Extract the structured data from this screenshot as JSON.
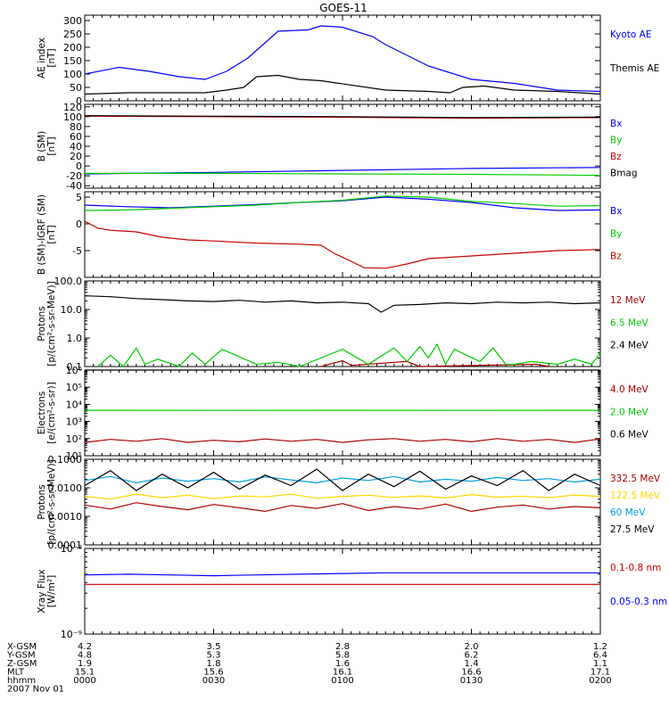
{
  "title": "GOES-11",
  "colors": {
    "black": "#000000",
    "blue": "#0000ff",
    "green": "#00cc00",
    "red": "#cc0000",
    "darkred": "#aa0000",
    "yellow": "#ffd700",
    "cyan": "#00a0e0"
  },
  "x_axis": {
    "rows": [
      {
        "label": "X-GSM",
        "values": [
          "4.2",
          "3.5",
          "2.8",
          "2.0",
          "1.2"
        ]
      },
      {
        "label": "Y-GSM",
        "values": [
          "4.8",
          "5.3",
          "5.8",
          "6.2",
          "6.4"
        ]
      },
      {
        "label": "Z-GSM",
        "values": [
          "1.9",
          "1.8",
          "1.6",
          "1.4",
          "1.1"
        ]
      },
      {
        "label": "MLT",
        "values": [
          "15.1",
          "15.6",
          "16.1",
          "16.6",
          "17.1"
        ]
      },
      {
        "label": "hhmm",
        "values": [
          "0000",
          "0030",
          "0100",
          "0130",
          "0200"
        ]
      }
    ],
    "date": "2007 Nov 01"
  },
  "chart_data": [
    {
      "id": "ae",
      "type": "line",
      "scale": "linear",
      "ylabel": [
        "AE index",
        "[nT]"
      ],
      "ylim": [
        0,
        320
      ],
      "yticks": [
        0,
        50,
        100,
        150,
        200,
        250,
        300
      ],
      "series": [
        {
          "name": "Kyoto AE",
          "color": "#0000ff",
          "x": [
            0,
            8,
            15,
            22,
            28,
            33,
            38,
            45,
            52,
            55,
            60,
            67,
            70,
            75,
            80,
            84,
            90,
            100,
            110,
            120
          ],
          "y": [
            100,
            125,
            110,
            90,
            80,
            110,
            160,
            260,
            265,
            280,
            275,
            240,
            210,
            170,
            130,
            110,
            80,
            65,
            40,
            35
          ]
        },
        {
          "name": "Themis AE",
          "color": "#000000",
          "x": [
            0,
            10,
            20,
            28,
            33,
            37,
            40,
            45,
            50,
            55,
            70,
            80,
            85,
            88,
            93,
            100,
            110,
            120
          ],
          "y": [
            25,
            30,
            30,
            30,
            40,
            50,
            90,
            95,
            80,
            75,
            40,
            35,
            30,
            50,
            55,
            40,
            35,
            25
          ]
        }
      ]
    },
    {
      "id": "b",
      "type": "line",
      "scale": "linear",
      "ylabel": [
        "B (SM)",
        "[nT]"
      ],
      "ylim": [
        -45,
        125
      ],
      "yticks": [
        -40,
        -20,
        0,
        20,
        40,
        60,
        80,
        100,
        120
      ],
      "series": [
        {
          "name": "Bx",
          "color": "#0000ff",
          "x": [
            0,
            30,
            60,
            90,
            120
          ],
          "y": [
            -16,
            -13,
            -9,
            -5,
            -3
          ]
        },
        {
          "name": "By",
          "color": "#00cc00",
          "x": [
            0,
            30,
            60,
            90,
            120
          ],
          "y": [
            -15,
            -15,
            -16,
            -17,
            -19
          ]
        },
        {
          "name": "Bz",
          "color": "#cc0000",
          "x": [
            0,
            30,
            60,
            90,
            120
          ],
          "y": [
            101,
            100,
            99,
            97,
            98
          ]
        },
        {
          "name": "Bmag",
          "color": "#000000",
          "x": [
            0,
            30,
            60,
            90,
            120
          ],
          "y": [
            102,
            101,
            100,
            98,
            99
          ]
        }
      ]
    },
    {
      "id": "bdiff",
      "type": "line",
      "scale": "linear",
      "ylabel": [
        "B (SM)-IGRF (SM)",
        "[nT]"
      ],
      "ylim": [
        -10,
        6
      ],
      "yticks": [
        -5,
        0,
        5
      ],
      "series": [
        {
          "name": "Bx",
          "color": "#0000ff",
          "x": [
            0,
            10,
            20,
            30,
            40,
            50,
            60,
            70,
            80,
            90,
            100,
            110,
            120
          ],
          "y": [
            3.5,
            3.2,
            3.0,
            3.3,
            3.6,
            4.0,
            4.3,
            5.0,
            4.6,
            4.0,
            3.0,
            2.5,
            2.6
          ]
        },
        {
          "name": "By",
          "color": "#00cc00",
          "x": [
            0,
            10,
            20,
            30,
            40,
            50,
            60,
            70,
            80,
            90,
            100,
            110,
            120
          ],
          "y": [
            2.5,
            2.6,
            2.9,
            3.2,
            3.5,
            4.0,
            4.4,
            5.2,
            5.0,
            4.2,
            3.8,
            3.3,
            3.4
          ]
        },
        {
          "name": "Bz",
          "color": "#cc0000",
          "x": [
            0,
            3,
            6,
            12,
            18,
            24,
            30,
            40,
            50,
            55,
            58,
            62,
            65,
            70,
            75,
            80,
            90,
            100,
            110,
            120
          ],
          "y": [
            0.5,
            -0.8,
            -1.2,
            -1.5,
            -2.5,
            -3.0,
            -3.2,
            -3.6,
            -3.8,
            -4.0,
            -5.5,
            -7.0,
            -8.2,
            -8.3,
            -7.5,
            -6.5,
            -6.0,
            -5.5,
            -5.0,
            -4.8
          ]
        }
      ]
    },
    {
      "id": "protons1",
      "type": "line",
      "scale": "log",
      "ylabel": [
        "Protons",
        "[p/(cm²-s-sr-MeV)]"
      ],
      "ylim": [
        0.1,
        100
      ],
      "yticks": [
        0.1,
        1.0,
        10.0,
        100.0
      ],
      "yticklabels": [
        "0.1",
        "1.0",
        "10.0",
        "100.0"
      ],
      "series": [
        {
          "name": "12 MeV",
          "color": "#aa0000",
          "x": [
            55,
            60,
            62,
            75,
            78,
            105,
            108
          ],
          "y": [
            0.1,
            0.16,
            0.11,
            0.15,
            0.1,
            0.12,
            0.1
          ]
        },
        {
          "name": "6.5 MeV",
          "color": "#00cc00",
          "x": [
            3,
            6,
            9,
            12,
            14,
            17,
            22,
            25,
            28,
            32,
            40,
            45,
            50,
            60,
            66,
            72,
            75,
            78,
            80,
            82,
            84,
            86,
            92,
            95,
            98,
            100,
            104,
            110,
            114,
            118,
            120
          ],
          "y": [
            0.1,
            0.25,
            0.1,
            0.45,
            0.12,
            0.18,
            0.1,
            0.3,
            0.12,
            0.4,
            0.12,
            0.14,
            0.1,
            0.4,
            0.12,
            0.45,
            0.15,
            0.5,
            0.2,
            0.6,
            0.12,
            0.4,
            0.15,
            0.45,
            0.12,
            0.12,
            0.15,
            0.12,
            0.18,
            0.12,
            0.3
          ]
        },
        {
          "name": "2.4 MeV",
          "color": "#000000",
          "x": [
            0,
            6,
            12,
            18,
            24,
            30,
            36,
            42,
            48,
            54,
            60,
            66,
            69,
            72,
            78,
            84,
            90,
            96,
            102,
            108,
            114,
            120
          ],
          "y": [
            30,
            28,
            24,
            22,
            20,
            19,
            21,
            18,
            20,
            17,
            18,
            16,
            8,
            14,
            15,
            17,
            16,
            18,
            17,
            18,
            16,
            17
          ]
        }
      ]
    },
    {
      "id": "electrons",
      "type": "line",
      "scale": "log",
      "ylabel": [
        "Electrons",
        "[e/(cm²-s-sr)]"
      ],
      "ylim": [
        10,
        1000000
      ],
      "yticks": [
        10,
        100,
        1000,
        10000,
        100000,
        1000000
      ],
      "yticklabels": [
        "10¹",
        "10²",
        "10³",
        "10⁴",
        "10⁵",
        "10⁶"
      ],
      "series": [
        {
          "name": "4.0 MeV",
          "color": "#aa0000",
          "x": [
            0,
            6,
            12,
            18,
            24,
            30,
            36,
            42,
            48,
            54,
            60,
            66,
            72,
            78,
            84,
            90,
            96,
            102,
            108,
            114,
            120
          ],
          "y": [
            60,
            90,
            70,
            100,
            60,
            80,
            65,
            95,
            70,
            90,
            60,
            85,
            100,
            70,
            90,
            65,
            100,
            70,
            90,
            60,
            95
          ]
        },
        {
          "name": "2.0 MeV",
          "color": "#00cc00",
          "x": [
            0,
            30,
            60,
            90,
            120
          ],
          "y": [
            4500,
            4400,
            4500,
            4400,
            4500
          ]
        },
        {
          "name": "0.6 MeV",
          "color": "#000000",
          "x": [
            0,
            30,
            60,
            90,
            120
          ],
          "y": [
            1000000,
            1000000,
            1000000,
            1000000,
            1000000
          ]
        }
      ]
    },
    {
      "id": "protons2",
      "type": "line",
      "scale": "log",
      "ylabel": [
        "Protons",
        "[p/(cm²-s-sr-MeV)]"
      ],
      "ylim": [
        0.0001,
        0.1
      ],
      "yticks": [
        0.0001,
        0.001,
        0.01,
        0.1
      ],
      "yticklabels": [
        "0.0001",
        "0.0010",
        "0.0100",
        "0.1000"
      ],
      "series": [
        {
          "name": "332.5 MeV",
          "color": "#aa0000",
          "x": [
            0,
            6,
            12,
            18,
            24,
            30,
            36,
            42,
            48,
            54,
            60,
            66,
            72,
            78,
            84,
            90,
            96,
            102,
            108,
            114,
            120
          ],
          "y": [
            0.0025,
            0.0018,
            0.003,
            0.0022,
            0.0017,
            0.0026,
            0.002,
            0.0015,
            0.0024,
            0.0019,
            0.0028,
            0.0016,
            0.0022,
            0.0018,
            0.0027,
            0.0015,
            0.0021,
            0.0025,
            0.0018,
            0.0022,
            0.002
          ]
        },
        {
          "name": "122.5 MeV",
          "color": "#ffd700",
          "x": [
            0,
            6,
            12,
            18,
            24,
            30,
            36,
            42,
            48,
            54,
            60,
            66,
            72,
            78,
            84,
            90,
            96,
            102,
            108,
            114,
            120
          ],
          "y": [
            0.005,
            0.004,
            0.006,
            0.0045,
            0.0055,
            0.0042,
            0.0052,
            0.0048,
            0.006,
            0.0043,
            0.005,
            0.0055,
            0.0046,
            0.0052,
            0.0044,
            0.0058,
            0.0047,
            0.0051,
            0.0045,
            0.0056,
            0.005
          ]
        },
        {
          "name": "60 MeV",
          "color": "#00a0e0",
          "x": [
            0,
            6,
            12,
            18,
            24,
            30,
            36,
            42,
            48,
            54,
            60,
            66,
            72,
            78,
            84,
            90,
            96,
            102,
            108,
            114,
            120
          ],
          "y": [
            0.018,
            0.025,
            0.015,
            0.022,
            0.017,
            0.021,
            0.016,
            0.024,
            0.019,
            0.015,
            0.022,
            0.018,
            0.025,
            0.016,
            0.02,
            0.017,
            0.023,
            0.018,
            0.021,
            0.016,
            0.02
          ]
        },
        {
          "name": "27.5 MeV",
          "color": "#000000",
          "x": [
            0,
            6,
            12,
            18,
            24,
            30,
            36,
            42,
            48,
            54,
            60,
            66,
            72,
            78,
            84,
            90,
            96,
            102,
            108,
            114,
            120
          ],
          "y": [
            0.012,
            0.04,
            0.008,
            0.03,
            0.01,
            0.035,
            0.009,
            0.028,
            0.012,
            0.045,
            0.008,
            0.03,
            0.011,
            0.038,
            0.009,
            0.026,
            0.012,
            0.04,
            0.008,
            0.03,
            0.012
          ]
        }
      ]
    },
    {
      "id": "xray",
      "type": "line",
      "scale": "log",
      "ylabel": [
        "Xray Flux",
        "[W/m²]"
      ],
      "ylim": [
        1e-09,
        1e-08
      ],
      "yticks": [
        1e-09,
        1e-08
      ],
      "yticklabels": [
        "10⁻⁹",
        "10⁻⁸"
      ],
      "series": [
        {
          "name": "0.1-0.8 nm",
          "color": "#cc0000",
          "x": [
            0,
            30,
            60,
            90,
            120
          ],
          "y": [
            3.8e-09,
            3.8e-09,
            3.8e-09,
            3.8e-09,
            3.8e-09
          ]
        },
        {
          "name": "0.05-0.3 nm",
          "color": "#0000ff",
          "x": [
            0,
            10,
            20,
            30,
            40,
            50,
            60,
            70,
            80,
            90,
            100,
            110,
            120
          ],
          "y": [
            4.9e-09,
            5e-09,
            4.9e-09,
            4.8e-09,
            4.9e-09,
            5e-09,
            5.1e-09,
            5.2e-09,
            5.2e-09,
            5.2e-09,
            5.2e-09,
            5.2e-09,
            5.2e-09
          ]
        }
      ]
    }
  ]
}
